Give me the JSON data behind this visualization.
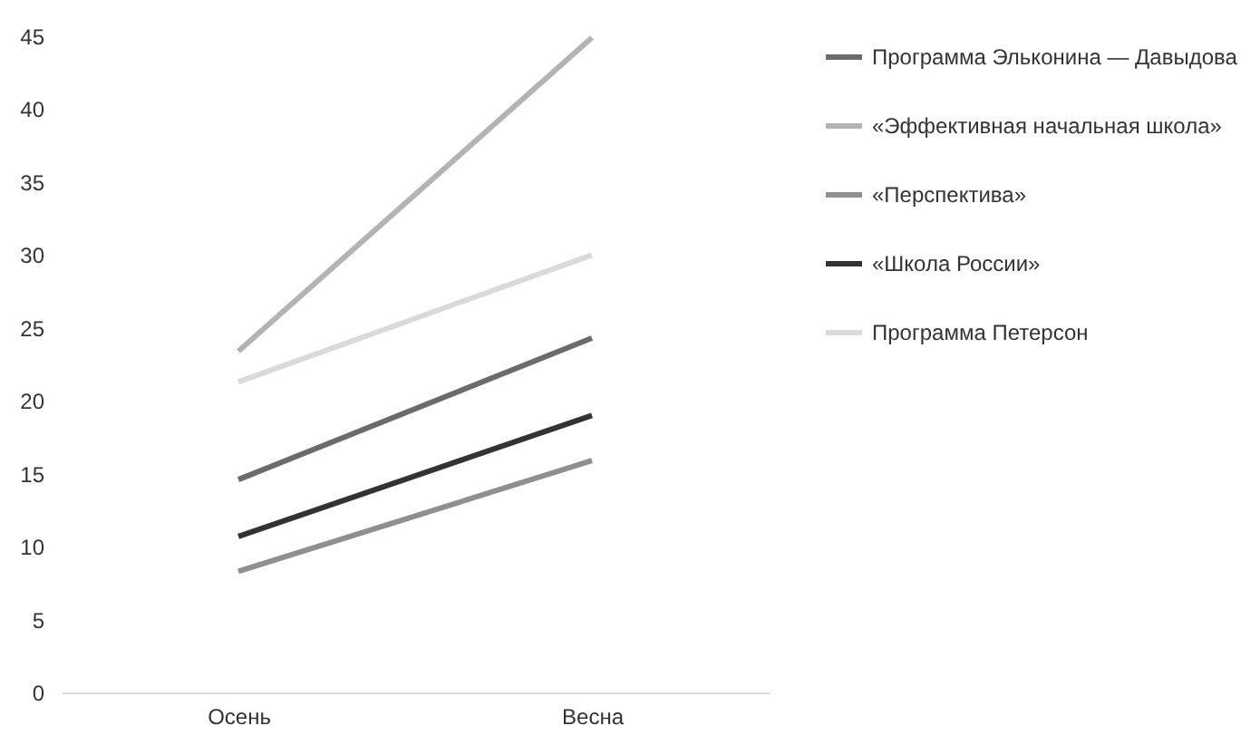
{
  "chart_data": {
    "type": "line",
    "categories": [
      "Осень",
      "Весна"
    ],
    "series": [
      {
        "name": "Программа Эльконина — Давыдова",
        "color": "#6b6b6b",
        "values": [
          14.6,
          24.3
        ]
      },
      {
        "name": "«Эффективная начальная школа»",
        "color": "#b3b3b3",
        "values": [
          23.4,
          44.9
        ]
      },
      {
        "name": "«Перспектива»",
        "color": "#8f8f8f",
        "values": [
          8.3,
          15.9
        ]
      },
      {
        "name": "«Школа России»",
        "color": "#333333",
        "values": [
          10.7,
          19.0
        ]
      },
      {
        "name": "Программа Петерсон",
        "color": "#dadada",
        "values": [
          21.3,
          30.0
        ]
      }
    ],
    "ylim": [
      0,
      45
    ],
    "yticks": [
      0,
      5,
      10,
      15,
      20,
      25,
      30,
      35,
      40,
      45
    ],
    "grid": false,
    "legend": "right",
    "marker": "none",
    "line_style": "solid"
  }
}
